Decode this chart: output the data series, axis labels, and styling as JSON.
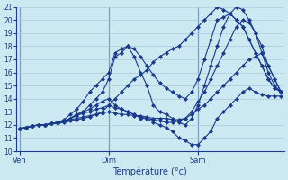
{
  "title": "Température (°c)",
  "background_color": "#cce8f0",
  "grid_color": "#aaccdd",
  "line_color": "#1a3a8c",
  "marker": "D",
  "markersize": 2.0,
  "linewidth": 0.8,
  "ylim": [
    10,
    21
  ],
  "yticks": [
    10,
    11,
    12,
    13,
    14,
    15,
    16,
    17,
    18,
    19,
    20,
    21
  ],
  "xtick_labels": [
    "Ven",
    "Dim",
    "Sam"
  ],
  "xtick_positions": [
    0,
    14,
    28
  ],
  "num_points": 42,
  "series": [
    [
      11.7,
      11.8,
      11.9,
      12.0,
      12.0,
      12.1,
      12.1,
      12.2,
      12.3,
      12.4,
      12.5,
      12.6,
      12.8,
      13.0,
      13.5,
      14.0,
      14.5,
      15.0,
      15.5,
      15.8,
      16.2,
      16.8,
      17.2,
      17.5,
      17.8,
      18.0,
      18.5,
      19.0,
      19.5,
      20.0,
      20.5,
      21.0,
      20.8,
      20.5,
      20.0,
      19.5,
      18.5,
      17.5,
      16.5,
      15.5,
      14.8,
      14.5
    ],
    [
      11.7,
      11.8,
      11.9,
      12.0,
      12.0,
      12.1,
      12.2,
      12.3,
      12.5,
      12.8,
      13.0,
      13.5,
      14.0,
      14.5,
      15.5,
      17.2,
      17.5,
      18.0,
      17.8,
      17.2,
      16.5,
      15.8,
      15.2,
      14.8,
      14.5,
      14.2,
      14.0,
      14.5,
      15.5,
      17.0,
      18.5,
      20.0,
      20.2,
      20.5,
      20.0,
      19.5,
      18.5,
      17.5,
      16.5,
      15.5,
      14.8,
      14.5
    ],
    [
      11.7,
      11.8,
      11.9,
      12.0,
      12.0,
      12.1,
      12.2,
      12.4,
      12.8,
      13.2,
      13.8,
      14.5,
      15.0,
      15.5,
      16.0,
      17.5,
      17.8,
      18.0,
      17.2,
      16.0,
      15.0,
      13.5,
      13.0,
      12.8,
      12.5,
      12.2,
      12.0,
      12.5,
      13.5,
      15.0,
      16.5,
      18.0,
      19.5,
      20.5,
      21.0,
      20.8,
      20.0,
      19.0,
      17.5,
      16.0,
      15.0,
      14.5
    ],
    [
      11.7,
      11.8,
      11.9,
      12.0,
      12.0,
      12.1,
      12.2,
      12.3,
      12.5,
      12.8,
      13.0,
      13.2,
      13.5,
      13.8,
      14.0,
      13.5,
      13.2,
      13.0,
      12.8,
      12.5,
      12.5,
      12.2,
      12.0,
      11.8,
      11.5,
      11.0,
      10.8,
      10.5,
      10.5,
      11.0,
      11.5,
      12.5,
      13.0,
      13.5,
      14.0,
      14.5,
      14.8,
      14.5,
      14.3,
      14.2,
      14.2,
      14.2
    ],
    [
      11.7,
      11.8,
      11.9,
      12.0,
      12.0,
      12.1,
      12.2,
      12.3,
      12.5,
      12.7,
      12.9,
      13.0,
      13.2,
      13.3,
      13.5,
      13.3,
      13.2,
      13.0,
      12.8,
      12.6,
      12.5,
      12.4,
      12.3,
      12.2,
      12.2,
      12.3,
      12.5,
      13.0,
      13.8,
      14.5,
      15.5,
      16.5,
      17.5,
      18.5,
      19.5,
      20.0,
      19.8,
      19.0,
      18.0,
      16.5,
      15.5,
      14.5
    ],
    [
      11.7,
      11.8,
      11.9,
      12.0,
      12.0,
      12.1,
      12.2,
      12.3,
      12.4,
      12.5,
      12.6,
      12.7,
      12.8,
      12.9,
      13.0,
      12.9,
      12.8,
      12.8,
      12.7,
      12.7,
      12.6,
      12.5,
      12.5,
      12.5,
      12.4,
      12.4,
      12.5,
      12.8,
      13.2,
      13.5,
      14.0,
      14.5,
      15.0,
      15.5,
      16.0,
      16.5,
      17.0,
      17.2,
      17.5,
      16.5,
      15.5,
      14.5
    ]
  ]
}
